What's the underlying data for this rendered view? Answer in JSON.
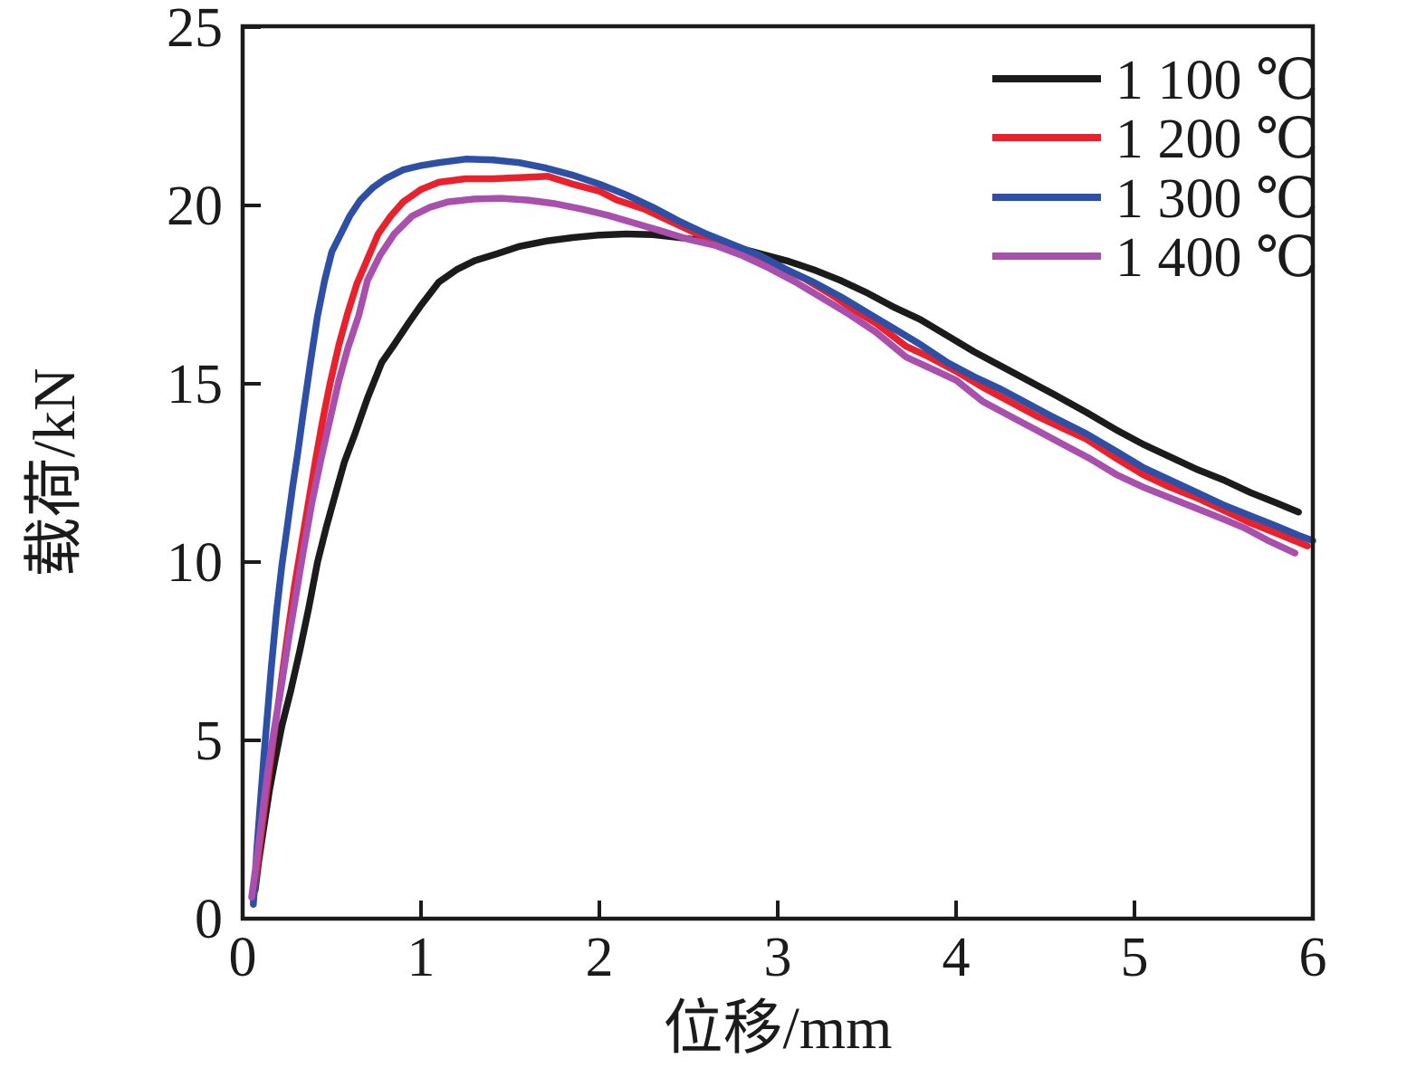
{
  "chart_data": {
    "type": "line",
    "title": "",
    "xlabel": "位移/mm",
    "ylabel": "载荷/kN",
    "xlim": [
      0,
      6
    ],
    "ylim": [
      0,
      25
    ],
    "x_ticks": [
      "0",
      "1",
      "2",
      "3",
      "4",
      "5",
      "6"
    ],
    "x_tick_values": [
      0,
      1,
      2,
      3,
      4,
      5,
      6
    ],
    "y_ticks": [
      "0",
      "5",
      "10",
      "15",
      "20",
      "25"
    ],
    "y_tick_values": [
      0,
      5,
      10,
      15,
      20,
      25
    ],
    "grid": false,
    "legend_position": "top-right-inside",
    "frame": "full-box",
    "series": [
      {
        "name": "1 100 ℃",
        "color": "#1b1b1b",
        "points": [
          [
            0.07,
            0.8
          ],
          [
            0.09,
            1.6
          ],
          [
            0.12,
            2.6
          ],
          [
            0.15,
            3.6
          ],
          [
            0.18,
            4.4
          ],
          [
            0.22,
            5.4
          ],
          [
            0.27,
            6.4
          ],
          [
            0.32,
            7.5
          ],
          [
            0.37,
            8.7
          ],
          [
            0.42,
            10.0
          ],
          [
            0.47,
            11.0
          ],
          [
            0.52,
            11.9
          ],
          [
            0.57,
            12.8
          ],
          [
            0.63,
            13.6
          ],
          [
            0.7,
            14.6
          ],
          [
            0.78,
            15.6
          ],
          [
            0.85,
            16.1
          ],
          [
            0.93,
            16.7
          ],
          [
            1.0,
            17.2
          ],
          [
            1.1,
            17.85
          ],
          [
            1.2,
            18.2
          ],
          [
            1.3,
            18.45
          ],
          [
            1.43,
            18.65
          ],
          [
            1.55,
            18.85
          ],
          [
            1.7,
            19.0
          ],
          [
            1.85,
            19.1
          ],
          [
            2.0,
            19.17
          ],
          [
            2.15,
            19.2
          ],
          [
            2.3,
            19.18
          ],
          [
            2.45,
            19.1
          ],
          [
            2.6,
            19.0
          ],
          [
            2.75,
            18.85
          ],
          [
            2.9,
            18.65
          ],
          [
            3.05,
            18.45
          ],
          [
            3.2,
            18.2
          ],
          [
            3.35,
            17.9
          ],
          [
            3.5,
            17.55
          ],
          [
            3.65,
            17.15
          ],
          [
            3.8,
            16.8
          ],
          [
            3.95,
            16.35
          ],
          [
            4.1,
            15.9
          ],
          [
            4.25,
            15.5
          ],
          [
            4.4,
            15.1
          ],
          [
            4.55,
            14.7
          ],
          [
            4.73,
            14.2
          ],
          [
            4.9,
            13.7
          ],
          [
            5.05,
            13.3
          ],
          [
            5.2,
            12.95
          ],
          [
            5.35,
            12.6
          ],
          [
            5.5,
            12.3
          ],
          [
            5.65,
            11.95
          ],
          [
            5.8,
            11.65
          ],
          [
            5.92,
            11.4
          ]
        ]
      },
      {
        "name": "1 200 ℃",
        "color": "#e8212c",
        "points": [
          [
            0.06,
            0.5
          ],
          [
            0.09,
            1.8
          ],
          [
            0.12,
            3.0
          ],
          [
            0.15,
            4.2
          ],
          [
            0.18,
            5.3
          ],
          [
            0.21,
            6.4
          ],
          [
            0.25,
            7.9
          ],
          [
            0.29,
            9.3
          ],
          [
            0.33,
            10.5
          ],
          [
            0.37,
            11.7
          ],
          [
            0.41,
            12.9
          ],
          [
            0.45,
            14.0
          ],
          [
            0.49,
            15.0
          ],
          [
            0.54,
            16.1
          ],
          [
            0.59,
            17.0
          ],
          [
            0.64,
            17.8
          ],
          [
            0.7,
            18.5
          ],
          [
            0.76,
            19.2
          ],
          [
            0.83,
            19.7
          ],
          [
            0.9,
            20.1
          ],
          [
            1.0,
            20.45
          ],
          [
            1.1,
            20.65
          ],
          [
            1.25,
            20.75
          ],
          [
            1.4,
            20.75
          ],
          [
            1.55,
            20.78
          ],
          [
            1.71,
            20.82
          ],
          [
            1.85,
            20.6
          ],
          [
            2.0,
            20.4
          ],
          [
            2.1,
            20.15
          ],
          [
            2.25,
            19.9
          ],
          [
            2.4,
            19.55
          ],
          [
            2.55,
            19.2
          ],
          [
            2.7,
            18.95
          ],
          [
            2.85,
            18.65
          ],
          [
            3.0,
            18.3
          ],
          [
            3.15,
            17.95
          ],
          [
            3.3,
            17.5
          ],
          [
            3.42,
            17.1
          ],
          [
            3.55,
            16.7
          ],
          [
            3.72,
            16.05
          ],
          [
            3.85,
            15.75
          ],
          [
            4.0,
            15.35
          ],
          [
            4.15,
            14.9
          ],
          [
            4.3,
            14.5
          ],
          [
            4.45,
            14.1
          ],
          [
            4.6,
            13.75
          ],
          [
            4.73,
            13.45
          ],
          [
            4.9,
            12.9
          ],
          [
            5.05,
            12.45
          ],
          [
            5.2,
            12.1
          ],
          [
            5.35,
            11.8
          ],
          [
            5.5,
            11.45
          ],
          [
            5.65,
            11.1
          ],
          [
            5.8,
            10.8
          ],
          [
            5.97,
            10.45
          ]
        ]
      },
      {
        "name": "1 300 ℃",
        "color": "#2d4fa5",
        "points": [
          [
            0.06,
            0.4
          ],
          [
            0.08,
            2.0
          ],
          [
            0.1,
            3.3
          ],
          [
            0.12,
            4.6
          ],
          [
            0.14,
            5.8
          ],
          [
            0.16,
            7.0
          ],
          [
            0.19,
            8.6
          ],
          [
            0.22,
            9.9
          ],
          [
            0.25,
            11.0
          ],
          [
            0.28,
            12.1
          ],
          [
            0.31,
            13.1
          ],
          [
            0.34,
            14.2
          ],
          [
            0.38,
            15.6
          ],
          [
            0.42,
            16.9
          ],
          [
            0.46,
            17.9
          ],
          [
            0.5,
            18.7
          ],
          [
            0.55,
            19.2
          ],
          [
            0.6,
            19.7
          ],
          [
            0.66,
            20.15
          ],
          [
            0.73,
            20.5
          ],
          [
            0.8,
            20.75
          ],
          [
            0.9,
            21.0
          ],
          [
            1.0,
            21.12
          ],
          [
            1.1,
            21.2
          ],
          [
            1.25,
            21.3
          ],
          [
            1.4,
            21.28
          ],
          [
            1.55,
            21.2
          ],
          [
            1.7,
            21.05
          ],
          [
            1.85,
            20.85
          ],
          [
            2.0,
            20.6
          ],
          [
            2.15,
            20.3
          ],
          [
            2.3,
            19.95
          ],
          [
            2.45,
            19.55
          ],
          [
            2.6,
            19.2
          ],
          [
            2.75,
            18.9
          ],
          [
            2.9,
            18.6
          ],
          [
            3.05,
            18.2
          ],
          [
            3.2,
            17.85
          ],
          [
            3.35,
            17.45
          ],
          [
            3.5,
            17.0
          ],
          [
            3.65,
            16.55
          ],
          [
            3.8,
            16.1
          ],
          [
            3.95,
            15.6
          ],
          [
            4.1,
            15.2
          ],
          [
            4.25,
            14.85
          ],
          [
            4.4,
            14.45
          ],
          [
            4.55,
            14.05
          ],
          [
            4.73,
            13.6
          ],
          [
            4.9,
            13.1
          ],
          [
            5.05,
            12.65
          ],
          [
            5.2,
            12.3
          ],
          [
            5.35,
            11.95
          ],
          [
            5.5,
            11.6
          ],
          [
            5.65,
            11.3
          ],
          [
            5.8,
            11.0
          ],
          [
            5.92,
            10.75
          ],
          [
            6.0,
            10.6
          ]
        ]
      },
      {
        "name": "1 400 ℃",
        "color": "#a94fae",
        "points": [
          [
            0.05,
            0.6
          ],
          [
            0.08,
            1.7
          ],
          [
            0.11,
            2.9
          ],
          [
            0.14,
            4.1
          ],
          [
            0.17,
            5.1
          ],
          [
            0.21,
            6.3
          ],
          [
            0.26,
            7.9
          ],
          [
            0.3,
            9.1
          ],
          [
            0.34,
            10.3
          ],
          [
            0.39,
            11.7
          ],
          [
            0.44,
            12.9
          ],
          [
            0.49,
            14.0
          ],
          [
            0.54,
            15.1
          ],
          [
            0.59,
            16.0
          ],
          [
            0.65,
            16.9
          ],
          [
            0.7,
            17.9
          ],
          [
            0.77,
            18.6
          ],
          [
            0.85,
            19.2
          ],
          [
            0.95,
            19.7
          ],
          [
            1.05,
            19.95
          ],
          [
            1.15,
            20.1
          ],
          [
            1.3,
            20.18
          ],
          [
            1.45,
            20.2
          ],
          [
            1.6,
            20.15
          ],
          [
            1.75,
            20.05
          ],
          [
            1.9,
            19.9
          ],
          [
            2.05,
            19.72
          ],
          [
            2.2,
            19.5
          ],
          [
            2.35,
            19.28
          ],
          [
            2.5,
            19.05
          ],
          [
            2.65,
            18.88
          ],
          [
            2.8,
            18.6
          ],
          [
            2.95,
            18.25
          ],
          [
            3.1,
            17.85
          ],
          [
            3.25,
            17.4
          ],
          [
            3.4,
            16.95
          ],
          [
            3.55,
            16.45
          ],
          [
            3.72,
            15.75
          ],
          [
            3.85,
            15.45
          ],
          [
            4.0,
            15.1
          ],
          [
            4.15,
            14.5
          ],
          [
            4.3,
            14.1
          ],
          [
            4.45,
            13.7
          ],
          [
            4.6,
            13.3
          ],
          [
            4.75,
            12.9
          ],
          [
            4.9,
            12.45
          ],
          [
            5.05,
            12.1
          ],
          [
            5.2,
            11.8
          ],
          [
            5.35,
            11.5
          ],
          [
            5.5,
            11.2
          ],
          [
            5.62,
            10.95
          ],
          [
            5.75,
            10.6
          ],
          [
            5.9,
            10.25
          ]
        ]
      }
    ]
  }
}
